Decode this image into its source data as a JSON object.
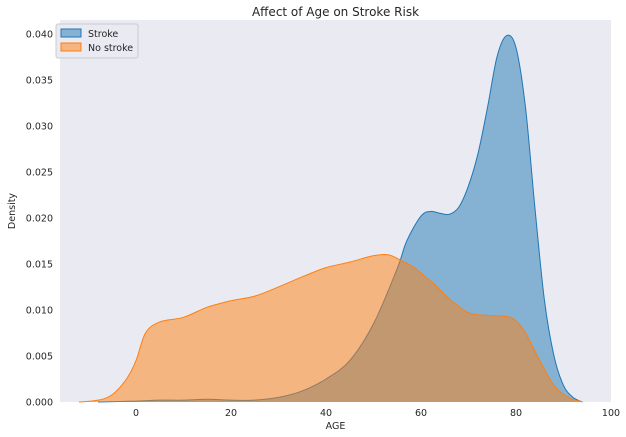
{
  "chart_data": {
    "type": "area",
    "title": "Affect of Age on Stroke Risk",
    "xlabel": "AGE",
    "ylabel": "Density",
    "xlim": [
      -16,
      100
    ],
    "ylim": [
      0,
      0.0415
    ],
    "xticks": [
      0,
      20,
      40,
      60,
      80,
      100
    ],
    "yticks": [
      "0.000",
      "0.005",
      "0.010",
      "0.015",
      "0.020",
      "0.025",
      "0.030",
      "0.035",
      "0.040"
    ],
    "grid": false,
    "legend_position": "top-left",
    "series": [
      {
        "name": "Stroke",
        "color": "#1f77b4",
        "fill_opacity": 0.5,
        "x": [
          -8,
          0,
          5,
          10,
          15,
          20,
          25,
          30,
          35,
          40,
          45,
          50,
          55,
          57,
          60,
          62,
          64,
          66,
          68,
          70,
          72,
          74,
          76,
          78,
          80,
          82,
          84,
          86,
          88,
          90,
          92,
          94
        ],
        "y": [
          0.0,
          0.0001,
          0.0002,
          0.0002,
          0.0003,
          0.0002,
          0.0002,
          0.0005,
          0.0012,
          0.0025,
          0.0045,
          0.0085,
          0.0145,
          0.0175,
          0.0202,
          0.0207,
          0.0205,
          0.0204,
          0.0212,
          0.0235,
          0.027,
          0.032,
          0.0375,
          0.0398,
          0.0385,
          0.032,
          0.021,
          0.011,
          0.005,
          0.0018,
          0.0005,
          0.0
        ]
      },
      {
        "name": "No stroke",
        "color": "#ff7f0e",
        "fill_opacity": 0.5,
        "x": [
          -12,
          -8,
          -5,
          -2,
          0,
          2,
          5,
          10,
          15,
          20,
          25,
          30,
          35,
          40,
          45,
          50,
          53,
          55,
          58,
          60,
          63,
          66,
          70,
          74,
          78,
          80,
          82,
          85,
          88,
          91,
          94
        ],
        "y": [
          0.0,
          0.0002,
          0.0008,
          0.0025,
          0.0045,
          0.0075,
          0.0087,
          0.0092,
          0.0103,
          0.011,
          0.0115,
          0.0125,
          0.0136,
          0.0146,
          0.0152,
          0.0159,
          0.016,
          0.0156,
          0.0148,
          0.014,
          0.0127,
          0.0112,
          0.0097,
          0.0094,
          0.0093,
          0.0088,
          0.0075,
          0.0045,
          0.0018,
          0.0005,
          0.0
        ]
      }
    ]
  }
}
